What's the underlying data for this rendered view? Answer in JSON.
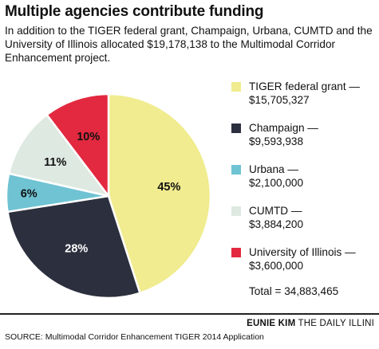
{
  "title": "Multiple agencies contribute funding",
  "subtitle": "In addition to the TIGER federal grant, Champaign, Urbana, CUMTD and the University of Illinois allocated $19,178,138 to the Multimodal Corridor Enhancement project.",
  "chart_data": {
    "type": "pie",
    "slices": [
      {
        "label": "TIGER federal grant —",
        "value_text": "$15,705,327",
        "value": 15705327,
        "percent_label": "45%",
        "color": "#f0ec8f",
        "label_color": "#111111"
      },
      {
        "label": "Champaign —",
        "value_text": "$9,593,938",
        "value": 9593938,
        "percent_label": "28%",
        "color": "#2c2f3d",
        "label_color": "#ffffff"
      },
      {
        "label": "Urbana —",
        "value_text": "$2,100,000",
        "value": 2100000,
        "percent_label": "6%",
        "color": "#6fc3d3",
        "label_color": "#111111"
      },
      {
        "label": "CUMTD —",
        "value_text": "$3,884,200",
        "value": 3884200,
        "percent_label": "11%",
        "color": "#dde9e1",
        "label_color": "#111111"
      },
      {
        "label": "University of Illinois —",
        "value_text": "$3,600,000",
        "value": 3600000,
        "percent_label": "10%",
        "color": "#e2293f",
        "label_color": "#111111"
      }
    ],
    "total_text": "Total = 34,883,465",
    "start_angle_deg": 0,
    "direction": "clockwise",
    "legend_position": "right"
  },
  "credit": {
    "name": "EUNIE KIM",
    "org": "THE DAILY ILLINI"
  },
  "source": "SOURCE: Multimodal Corridor Enhancement TIGER 2014 Application"
}
